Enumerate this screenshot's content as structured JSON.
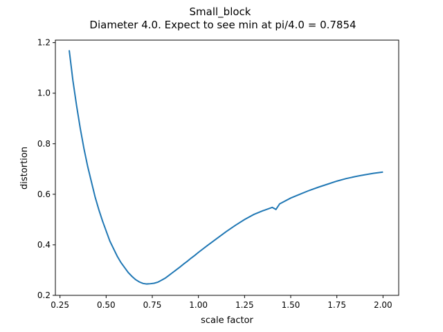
{
  "colors": {
    "line": "#1f77b4",
    "axes": "#000000",
    "background": "#ffffff"
  },
  "chart_data": {
    "type": "line",
    "title": "Small_block",
    "subtitle": "Diameter 4.0. Expect to see min at pi/4.0 = 0.7854",
    "xlabel": "scale factor",
    "ylabel": "distortion",
    "xlim": [
      0.225,
      2.085
    ],
    "ylim": [
      0.2,
      1.21
    ],
    "xticks": [
      0.25,
      0.5,
      0.75,
      1.0,
      1.25,
      1.5,
      1.75,
      2.0
    ],
    "xtick_labels": [
      "0.25",
      "0.50",
      "0.75",
      "1.00",
      "1.25",
      "1.50",
      "1.75",
      "2.00"
    ],
    "yticks": [
      0.2,
      0.4,
      0.6,
      0.8,
      1.0,
      1.2
    ],
    "ytick_labels": [
      "0.2",
      "0.4",
      "0.6",
      "0.8",
      "1.0",
      "1.2"
    ],
    "grid": false,
    "series": [
      {
        "x": [
          0.3,
          0.32,
          0.34,
          0.36,
          0.38,
          0.4,
          0.42,
          0.44,
          0.46,
          0.48,
          0.5,
          0.52,
          0.54,
          0.56,
          0.58,
          0.6,
          0.62,
          0.64,
          0.66,
          0.68,
          0.7,
          0.72,
          0.74,
          0.76,
          0.78,
          0.8,
          0.82,
          0.84,
          0.86,
          0.88,
          0.9,
          0.92,
          0.94,
          0.96,
          0.98,
          1.0,
          1.05,
          1.1,
          1.15,
          1.2,
          1.25,
          1.3,
          1.35,
          1.4,
          1.42,
          1.44,
          1.5,
          1.55,
          1.6,
          1.65,
          1.7,
          1.75,
          1.8,
          1.85,
          1.9,
          1.95,
          2.0
        ],
        "y": [
          1.17,
          1.05,
          0.95,
          0.86,
          0.78,
          0.71,
          0.65,
          0.59,
          0.54,
          0.495,
          0.455,
          0.415,
          0.385,
          0.355,
          0.33,
          0.31,
          0.29,
          0.275,
          0.262,
          0.253,
          0.247,
          0.245,
          0.246,
          0.248,
          0.252,
          0.26,
          0.268,
          0.279,
          0.29,
          0.301,
          0.312,
          0.324,
          0.335,
          0.347,
          0.358,
          0.37,
          0.398,
          0.425,
          0.452,
          0.477,
          0.5,
          0.52,
          0.535,
          0.548,
          0.54,
          0.562,
          0.585,
          0.6,
          0.615,
          0.628,
          0.64,
          0.652,
          0.662,
          0.67,
          0.677,
          0.683,
          0.688
        ]
      }
    ]
  }
}
